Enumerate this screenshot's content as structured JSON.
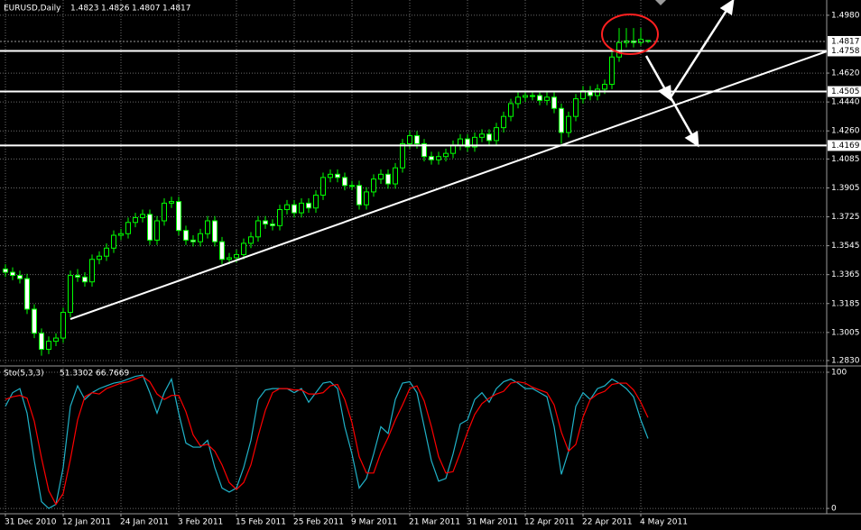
{
  "chart_data": [
    {
      "type": "candlestick",
      "title": "EURUSD,Daily",
      "categories": [
        "31 Dec 2010",
        null,
        null,
        null,
        null,
        null,
        null,
        null,
        "12 Jan 2011",
        null,
        null,
        null,
        null,
        null,
        null,
        null,
        "24 Jan 2011",
        null,
        null,
        null,
        null,
        null,
        null,
        null,
        "3 Feb 2011",
        null,
        null,
        null,
        null,
        null,
        null,
        null,
        "15 Feb 2011",
        null,
        null,
        null,
        null,
        null,
        null,
        null,
        "25 Feb 2011",
        null,
        null,
        null,
        null,
        null,
        null,
        null,
        "9 Mar 2011",
        null,
        null,
        null,
        null,
        null,
        null,
        null,
        "21 Mar 2011",
        null,
        null,
        null,
        null,
        null,
        null,
        null,
        "31 Mar 2011",
        null,
        null,
        null,
        null,
        null,
        null,
        null,
        "12 Apr 2011",
        null,
        null,
        null,
        null,
        null,
        null,
        null,
        "22 Apr 2011",
        null,
        null,
        null,
        null,
        null,
        null,
        null,
        "4 May 2011",
        null
      ],
      "open": [
        1.34,
        1.338,
        1.336,
        1.334,
        1.315,
        1.3,
        1.29,
        1.295,
        1.297,
        1.313,
        1.336,
        1.335,
        1.332,
        1.346,
        1.348,
        1.353,
        1.361,
        1.362,
        1.369,
        1.372,
        1.374,
        1.358,
        1.37,
        1.381,
        1.382,
        1.364,
        1.358,
        1.357,
        1.362,
        1.37,
        1.357,
        1.346,
        1.347,
        1.349,
        1.356,
        1.36,
        1.37,
        1.368,
        1.367,
        1.377,
        1.38,
        1.375,
        1.381,
        1.378,
        1.386,
        1.397,
        1.399,
        1.397,
        1.392,
        1.392,
        1.38,
        1.388,
        1.396,
        1.399,
        1.393,
        1.403,
        1.418,
        1.423,
        1.418,
        1.41,
        1.408,
        1.41,
        1.412,
        1.417,
        1.421,
        1.416,
        1.422,
        1.424,
        1.42,
        1.428,
        1.435,
        1.443,
        1.447,
        1.448,
        1.448,
        1.445,
        1.447,
        1.44,
        1.425,
        1.435,
        1.446,
        1.451,
        1.448,
        1.452,
        1.455,
        1.472,
        1.481,
        1.482,
        1.481,
        1.4823
      ],
      "high": [
        1.343,
        1.341,
        1.339,
        1.337,
        1.318,
        1.303,
        1.298,
        1.3,
        1.316,
        1.339,
        1.34,
        1.338,
        1.349,
        1.351,
        1.356,
        1.364,
        1.365,
        1.372,
        1.375,
        1.377,
        1.377,
        1.373,
        1.384,
        1.385,
        1.385,
        1.367,
        1.361,
        1.365,
        1.373,
        1.373,
        1.36,
        1.35,
        1.352,
        1.359,
        1.363,
        1.373,
        1.373,
        1.371,
        1.38,
        1.383,
        1.383,
        1.384,
        1.384,
        1.389,
        1.4,
        1.402,
        1.402,
        1.4,
        1.395,
        1.395,
        1.391,
        1.399,
        1.402,
        1.402,
        1.406,
        1.421,
        1.426,
        1.426,
        1.421,
        1.413,
        1.413,
        1.415,
        1.42,
        1.424,
        1.424,
        1.425,
        1.427,
        1.427,
        1.431,
        1.438,
        1.446,
        1.45,
        1.451,
        1.451,
        1.451,
        1.45,
        1.45,
        1.443,
        1.438,
        1.449,
        1.454,
        1.454,
        1.455,
        1.458,
        1.475,
        1.49,
        1.49,
        1.49,
        1.49,
        1.4826
      ],
      "low": [
        1.335,
        1.333,
        1.331,
        1.312,
        1.297,
        1.286,
        1.287,
        1.292,
        1.294,
        1.31,
        1.332,
        1.329,
        1.329,
        1.343,
        1.345,
        1.35,
        1.358,
        1.359,
        1.366,
        1.369,
        1.355,
        1.355,
        1.367,
        1.378,
        1.361,
        1.355,
        1.354,
        1.354,
        1.359,
        1.354,
        1.343,
        1.343,
        1.344,
        1.346,
        1.353,
        1.357,
        1.365,
        1.364,
        1.364,
        1.374,
        1.372,
        1.372,
        1.375,
        1.375,
        1.383,
        1.394,
        1.394,
        1.389,
        1.389,
        1.377,
        1.377,
        1.385,
        1.393,
        1.39,
        1.39,
        1.4,
        1.415,
        1.415,
        1.407,
        1.405,
        1.405,
        1.407,
        1.409,
        1.414,
        1.413,
        1.413,
        1.419,
        1.417,
        1.417,
        1.425,
        1.432,
        1.44,
        1.444,
        1.445,
        1.442,
        1.442,
        1.437,
        1.418,
        1.422,
        1.432,
        1.443,
        1.445,
        1.445,
        1.449,
        1.452,
        1.469,
        1.478,
        1.478,
        1.479,
        1.4807
      ],
      "close": [
        1.338,
        1.336,
        1.334,
        1.315,
        1.3,
        1.29,
        1.295,
        1.297,
        1.313,
        1.336,
        1.335,
        1.332,
        1.346,
        1.348,
        1.353,
        1.361,
        1.362,
        1.369,
        1.372,
        1.374,
        1.358,
        1.37,
        1.381,
        1.382,
        1.364,
        1.358,
        1.357,
        1.362,
        1.37,
        1.357,
        1.346,
        1.347,
        1.349,
        1.356,
        1.36,
        1.37,
        1.368,
        1.367,
        1.377,
        1.38,
        1.375,
        1.381,
        1.378,
        1.386,
        1.397,
        1.399,
        1.397,
        1.392,
        1.392,
        1.38,
        1.388,
        1.396,
        1.399,
        1.393,
        1.403,
        1.418,
        1.423,
        1.418,
        1.41,
        1.408,
        1.41,
        1.412,
        1.417,
        1.421,
        1.416,
        1.422,
        1.424,
        1.42,
        1.428,
        1.435,
        1.443,
        1.447,
        1.448,
        1.448,
        1.445,
        1.447,
        1.44,
        1.425,
        1.435,
        1.446,
        1.451,
        1.448,
        1.452,
        1.455,
        1.472,
        1.481,
        1.482,
        1.481,
        1.483,
        1.4817
      ],
      "up_color": "#000000",
      "down_color": "#ffffff",
      "wick_color": "#00ff00",
      "ylim": [
        1.2802,
        1.5075
      ],
      "yticks": [
        {
          "value": 1.498,
          "label": "1.4980"
        },
        {
          "value": 1.462,
          "label": "1.4620"
        },
        {
          "value": 1.444,
          "label": "1.4440"
        },
        {
          "value": 1.426,
          "label": "1.4260"
        },
        1.4085,
        1.3905,
        1.3725,
        1.3545,
        1.3365,
        1.3185,
        1.3005,
        {
          "value": 1.283,
          "label": "1.2830"
        }
      ],
      "hlines": [
        1.4758,
        1.4505,
        1.4169
      ],
      "grid": true
    },
    {
      "type": "line",
      "title": "Sto(5,3,3)",
      "series": [
        {
          "color": "#20b2c8",
          "values": [
            75,
            85,
            88,
            70,
            35,
            5,
            0,
            3,
            30,
            75,
            90,
            80,
            85,
            88,
            90,
            92,
            93,
            95,
            97,
            98,
            85,
            70,
            85,
            95,
            70,
            48,
            45,
            45,
            50,
            30,
            15,
            12,
            15,
            30,
            50,
            80,
            87,
            88,
            88,
            88,
            85,
            88,
            78,
            85,
            92,
            93,
            88,
            60,
            40,
            15,
            22,
            40,
            60,
            55,
            80,
            92,
            93,
            85,
            60,
            35,
            20,
            22,
            40,
            62,
            65,
            80,
            85,
            78,
            88,
            93,
            95,
            92,
            88,
            88,
            85,
            82,
            60,
            25,
            42,
            75,
            85,
            80,
            88,
            90,
            95,
            92,
            88,
            82,
            65,
            51.3302
          ]
        },
        {
          "color": "#ff0000",
          "values": [
            80,
            82,
            83,
            81,
            64,
            37,
            13,
            3,
            11,
            36,
            65,
            82,
            85,
            84,
            88,
            90,
            92,
            93,
            95,
            97,
            93,
            84,
            80,
            83,
            83,
            71,
            54,
            46,
            47,
            42,
            32,
            19,
            14,
            19,
            32,
            53,
            72,
            85,
            88,
            88,
            87,
            87,
            84,
            84,
            85,
            90,
            91,
            80,
            63,
            38,
            26,
            26,
            41,
            52,
            65,
            76,
            88,
            90,
            79,
            60,
            38,
            26,
            27,
            41,
            56,
            69,
            77,
            81,
            84,
            86,
            92,
            93,
            92,
            89,
            87,
            85,
            76,
            56,
            42,
            47,
            67,
            80,
            84,
            86,
            91,
            92,
            92,
            87,
            78,
            66.7669
          ]
        }
      ],
      "ylim": [
        -2.6,
        103.3
      ],
      "yticks": [
        0,
        100
      ],
      "grid": true
    }
  ]
}
